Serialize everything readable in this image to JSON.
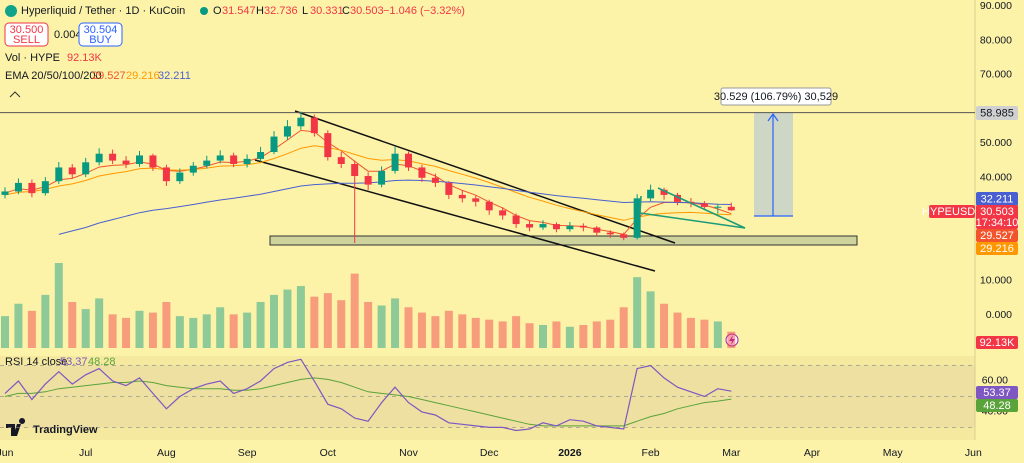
{
  "header": {
    "symbol": "Hyperliquid / Tether · 1D · KuCoin",
    "o": "O",
    "h": "H",
    "l": "L",
    "c": "C",
    "change": "−1.046 (−3.32%)",
    "sell_price": "30.500",
    "sell": "SELL",
    "spread": "0.004",
    "buy_price": "30.504",
    "buy": "BUY",
    "ema_label": "EMA 20/50/100/200",
    "ticker": "HYPEUSDT",
    "countdown": "17:34:10",
    "measure": "30.529 (106.79%) 30,529",
    "logo": "TradingView"
  },
  "chart_data": {
    "type": "candlestick",
    "up_color": "#089981",
    "down_color": "#f23645",
    "categories": [
      "Jun",
      null,
      null,
      null,
      null,
      null,
      "Jul",
      null,
      null,
      null,
      null,
      null,
      "Aug",
      null,
      null,
      null,
      null,
      null,
      "Sep",
      null,
      null,
      null,
      null,
      null,
      "Oct",
      null,
      null,
      null,
      null,
      null,
      "Nov",
      null,
      null,
      null,
      null,
      null,
      "Dec",
      null,
      null,
      null,
      null,
      null,
      "2026",
      null,
      null,
      null,
      null,
      null,
      "Feb",
      null,
      null,
      null,
      null,
      null,
      "Mar",
      null,
      null,
      null,
      null,
      null,
      "Apr",
      null,
      null,
      null,
      null,
      null,
      "May",
      null,
      null,
      null,
      null,
      null,
      "Jun"
    ],
    "open": [
      35.0,
      36.0,
      38.5,
      35.5,
      39.0,
      43.0,
      41.0,
      44.5,
      47.0,
      45.0,
      44.0,
      46.5,
      43.0,
      39.0,
      41.5,
      43.5,
      45.0,
      46.5,
      44.0,
      45.5,
      47.5,
      52.0,
      55.0,
      57.5,
      53.0,
      46.0,
      44.0,
      40.5,
      38.0,
      42.0,
      47.0,
      43.0,
      40.0,
      38.5,
      35.0,
      34.0,
      33.0,
      30.5,
      29.0,
      26.5,
      25.5,
      26.5,
      25.0,
      26.0,
      25.5,
      24.0,
      23.5,
      22.5,
      34.0,
      36.5,
      35.0,
      33.0,
      32.5,
      31.5,
      31.547,
      null,
      null,
      null,
      null,
      null,
      null,
      null,
      null,
      null,
      null,
      null,
      null,
      null,
      null,
      null,
      null,
      null,
      null
    ],
    "high": [
      37.2,
      39.8,
      39.5,
      40.2,
      44.6,
      44.0,
      45.8,
      48.6,
      48.2,
      46.3,
      47.8,
      47.0,
      43.8,
      42.7,
      44.6,
      46.4,
      48.0,
      47.3,
      46.8,
      49.0,
      53.6,
      56.8,
      59.3,
      58.4,
      53.8,
      47.5,
      45.0,
      41.6,
      43.3,
      49.0,
      47.6,
      43.8,
      41.2,
      39.0,
      36.4,
      34.8,
      33.6,
      31.4,
      29.6,
      27.4,
      27.6,
      27.0,
      27.1,
      26.7,
      25.9,
      24.7,
      24.0,
      35.2,
      38.0,
      37.1,
      35.6,
      34.1,
      33.2,
      32.4,
      32.736,
      null,
      null,
      null,
      null,
      null,
      null,
      null,
      null,
      null,
      null,
      null,
      null,
      null,
      null,
      null,
      null,
      null,
      null
    ],
    "low": [
      34.0,
      35.2,
      34.3,
      34.8,
      38.2,
      39.8,
      40.2,
      43.6,
      44.0,
      42.8,
      43.2,
      42.0,
      37.6,
      38.2,
      40.6,
      42.7,
      44.2,
      43.1,
      43.0,
      44.7,
      46.9,
      51.0,
      54.0,
      52.0,
      45.0,
      42.8,
      21.0,
      36.4,
      37.2,
      41.2,
      42.0,
      38.8,
      37.3,
      33.8,
      32.8,
      31.6,
      29.2,
      27.8,
      25.4,
      24.4,
      24.8,
      24.1,
      24.3,
      24.4,
      23.0,
      22.5,
      21.8,
      22.0,
      33.2,
      33.6,
      32.0,
      31.4,
      30.6,
      29.6,
      30.331,
      null,
      null,
      null,
      null,
      null,
      null,
      null,
      null,
      null,
      null,
      null,
      null,
      null,
      null,
      null,
      null,
      null,
      null
    ],
    "close": [
      36.0,
      38.5,
      35.5,
      39.0,
      43.0,
      41.0,
      44.5,
      47.0,
      45.0,
      44.0,
      46.5,
      43.0,
      39.0,
      41.5,
      43.5,
      45.0,
      46.5,
      44.0,
      45.5,
      47.5,
      52.0,
      55.0,
      57.5,
      53.0,
      46.0,
      44.0,
      40.5,
      38.0,
      42.0,
      47.0,
      43.0,
      40.0,
      38.5,
      35.0,
      34.0,
      33.0,
      30.5,
      29.0,
      26.5,
      25.5,
      26.5,
      25.0,
      26.0,
      25.5,
      24.0,
      23.5,
      22.5,
      34.0,
      36.5,
      35.0,
      33.0,
      32.5,
      31.5,
      31.547,
      30.503,
      null,
      null,
      null,
      null,
      null,
      null,
      null,
      null,
      null,
      null,
      null,
      null,
      null,
      null,
      null,
      null,
      null,
      null
    ],
    "lines": [
      {
        "color": "#f2552c",
        "values": [
          35.5,
          36.8,
          36.4,
          37.4,
          39.4,
          39.8,
          41.3,
          43.1,
          43.6,
          43.8,
          44.6,
          44.0,
          42.1,
          41.9,
          42.5,
          43.4,
          44.6,
          44.4,
          44.8,
          45.9,
          48.3,
          51.0,
          53.8,
          53.4,
          50.3,
          47.8,
          44.8,
          41.9,
          41.9,
          44.0,
          43.5,
          42.0,
          40.5,
          38.0,
          36.3,
          34.9,
          32.9,
          31.2,
          29.0,
          27.5,
          27.0,
          26.1,
          26.0,
          25.8,
          25.0,
          24.3,
          23.5,
          28.0,
          31.4,
          32.8,
          32.9,
          32.7,
          32.1,
          30.9,
          29.527,
          null,
          null,
          null,
          null,
          null,
          null,
          null,
          null,
          null,
          null,
          null,
          null,
          null,
          null,
          null,
          null,
          null,
          null
        ]
      },
      {
        "color": "#ff9800",
        "values": [
          35.0,
          35.8,
          36.0,
          36.6,
          37.6,
          38.2,
          39.2,
          40.5,
          41.2,
          41.8,
          42.6,
          42.8,
          42.3,
          42.2,
          42.4,
          42.8,
          43.4,
          43.5,
          43.8,
          44.4,
          45.6,
          47.0,
          48.6,
          49.3,
          48.8,
          48.0,
          46.8,
          45.6,
          45.1,
          45.3,
          44.9,
          44.1,
          43.3,
          42.1,
          41.0,
          39.9,
          38.6,
          37.2,
          35.7,
          34.3,
          33.2,
          32.0,
          31.0,
          30.1,
          29.2,
          28.4,
          27.6,
          28.5,
          29.2,
          29.6,
          29.8,
          29.9,
          29.7,
          29.4,
          29.216,
          null,
          null,
          null,
          null,
          null,
          null,
          null,
          null,
          null,
          null,
          null,
          null,
          null,
          null,
          null,
          null,
          null,
          null
        ]
      },
      {
        "color": "#4a5fd0",
        "values": [
          null,
          null,
          null,
          null,
          23.5,
          24.5,
          25.5,
          26.8,
          27.8,
          28.8,
          29.8,
          30.5,
          31.0,
          31.6,
          32.2,
          32.9,
          33.5,
          34.0,
          34.6,
          35.2,
          36.0,
          36.8,
          37.6,
          38.0,
          38.2,
          38.4,
          38.4,
          38.5,
          38.8,
          39.2,
          39.3,
          39.2,
          39.0,
          38.7,
          38.3,
          37.9,
          37.4,
          36.9,
          36.3,
          35.8,
          35.3,
          34.8,
          34.4,
          34.0,
          33.6,
          33.2,
          32.8,
          32.9,
          33.0,
          32.9,
          32.8,
          32.7,
          32.5,
          32.3,
          32.211,
          null,
          null,
          null,
          null,
          null,
          null,
          null,
          null,
          null,
          null,
          null,
          null,
          null,
          null,
          null,
          null,
          null,
          null
        ]
      }
    ],
    "ylim": [
      -10.2,
      91.8
    ],
    "yticks": [
      {
        "value": 90,
        "label": "90.000"
      },
      {
        "value": 80,
        "label": "80.000"
      },
      {
        "value": 70,
        "label": "70.000"
      },
      {
        "value": 50,
        "label": "50.000"
      },
      {
        "value": 40,
        "label": "40.000"
      },
      {
        "value": 10,
        "label": "10.000"
      },
      {
        "value": 0,
        "label": "0.000"
      }
    ],
    "hline": {
      "value": 58.985,
      "color": "#555555"
    },
    "volume": {
      "label": "Vol · HYPE",
      "values": [
        180000,
        250000,
        210000,
        300000,
        480000,
        260000,
        220000,
        280000,
        190000,
        170000,
        210000,
        200000,
        260000,
        180000,
        170000,
        190000,
        230000,
        190000,
        200000,
        260000,
        300000,
        330000,
        350000,
        290000,
        310000,
        270000,
        420000,
        260000,
        240000,
        280000,
        230000,
        200000,
        180000,
        210000,
        190000,
        170000,
        160000,
        150000,
        180000,
        140000,
        130000,
        150000,
        120000,
        130000,
        150000,
        160000,
        230000,
        400000,
        320000,
        250000,
        200000,
        170000,
        160000,
        150000,
        92130,
        null,
        null,
        null,
        null,
        null,
        null,
        null,
        null,
        null,
        null,
        null,
        null,
        null,
        null,
        null,
        null,
        null,
        null
      ],
      "value_labels": [
        null,
        null,
        null,
        null,
        null,
        null,
        null,
        null,
        null,
        null,
        null,
        null,
        null,
        null,
        null,
        null,
        null,
        null,
        null,
        null,
        null,
        null,
        null,
        null,
        null,
        null,
        null,
        null,
        null,
        null,
        null,
        null,
        null,
        null,
        null,
        null,
        null,
        null,
        null,
        null,
        null,
        null,
        null,
        null,
        null,
        null,
        null,
        null,
        null,
        null,
        null,
        null,
        null,
        null,
        "92.13K",
        null,
        null,
        null,
        null,
        null,
        null,
        null,
        null,
        null,
        null,
        null,
        null,
        null,
        null,
        null,
        null,
        null,
        null
      ]
    },
    "rsi": {
      "label": "RSI 14 close",
      "color": "#7e57c2",
      "ma_color": "#5aa33a",
      "values": [
        52,
        60,
        48,
        58,
        66,
        58,
        64,
        68,
        60,
        57,
        62,
        52,
        42,
        50,
        55,
        58,
        60,
        52,
        55,
        60,
        68,
        72,
        74,
        60,
        45,
        42,
        36,
        34,
        46,
        56,
        46,
        40,
        38,
        33,
        32,
        31,
        30,
        30,
        28,
        29,
        33,
        31,
        35,
        34,
        31,
        30,
        29,
        68,
        70,
        62,
        56,
        53,
        50,
        55,
        53.37,
        null,
        null,
        null,
        null,
        null,
        null,
        null,
        null,
        null,
        null,
        null,
        null,
        null,
        null,
        null,
        null,
        null,
        null
      ],
      "ma": [
        50,
        52,
        52,
        53,
        55,
        56,
        57,
        58,
        59,
        59,
        60,
        59,
        57,
        56,
        55,
        55,
        55,
        54,
        54,
        55,
        57,
        59,
        61,
        62,
        61,
        59,
        56,
        53,
        52,
        51,
        50,
        48,
        46,
        44,
        42,
        40,
        38,
        36,
        34,
        32,
        31,
        31,
        31,
        31,
        31,
        31,
        31,
        34,
        37,
        39,
        42,
        44,
        46,
        47,
        48.28,
        null,
        null,
        null,
        null,
        null,
        null,
        null,
        null,
        null,
        null,
        null,
        null,
        null,
        null,
        null,
        null,
        null,
        null
      ],
      "ylim": [
        21.9,
        76.1
      ],
      "yticks": [
        {
          "value": 60,
          "label": "60.00"
        },
        {
          "value": 40,
          "label": "40.00"
        }
      ],
      "levels": [
        70,
        50,
        30
      ]
    }
  }
}
